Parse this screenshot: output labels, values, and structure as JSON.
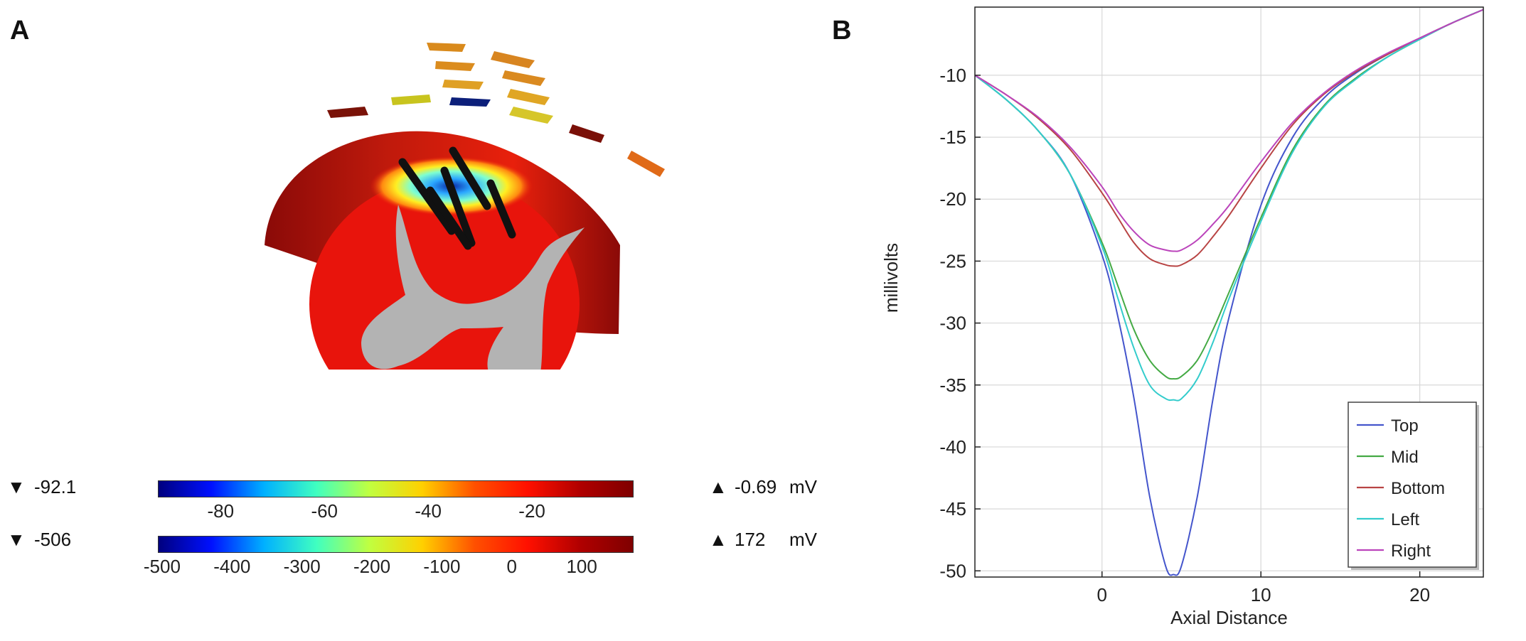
{
  "panel_a": {
    "label": "A",
    "colorbars": [
      {
        "min_label": "-92.1",
        "max_label": "-0.69",
        "unit": "mV",
        "ticks": [
          "-80",
          "-60",
          "-40",
          "-20"
        ],
        "tick_values": [
          -80,
          -60,
          -40,
          -20
        ],
        "range": [
          -92.1,
          -0.69
        ]
      },
      {
        "min_label": "-506",
        "max_label": "172",
        "unit": "mV",
        "ticks": [
          "-500",
          "-400",
          "-300",
          "-200",
          "-100",
          "0",
          "100"
        ],
        "tick_values": [
          -500,
          -400,
          -300,
          -200,
          -100,
          0,
          100
        ],
        "range": [
          -506,
          172
        ]
      }
    ],
    "colors": {
      "cord_red": "#e8140c",
      "dark_red": "#8a0a08",
      "gray_matter": "#b3b3b3",
      "lead": "#111111"
    }
  },
  "panel_b": {
    "label": "B"
  },
  "chart_data": {
    "type": "line",
    "title": "",
    "xlabel": "Axial Distance",
    "ylabel": "millivolts",
    "xlim": [
      -8,
      24
    ],
    "ylim": [
      -50.5,
      -4.5
    ],
    "xticks": [
      0,
      10,
      20
    ],
    "xtick_labels": [
      "0",
      "10",
      "20"
    ],
    "yticks": [
      -10,
      -15,
      -20,
      -25,
      -30,
      -35,
      -40,
      -45,
      -50
    ],
    "ytick_labels": [
      "-10",
      "-15",
      "-20",
      "-25",
      "-30",
      "-35",
      "-40",
      "-45",
      "-50"
    ],
    "grid": true,
    "legend_position": "bottom-right",
    "x": [
      -8,
      -6,
      -4,
      -2,
      0,
      1,
      2,
      3,
      4,
      4.5,
      5,
      6,
      7,
      8,
      10,
      12,
      14,
      16,
      18,
      20,
      22,
      24
    ],
    "series": [
      {
        "name": "Top",
        "color": "#4455cc",
        "values": [
          -10,
          -12,
          -14.5,
          -18,
          -24.5,
          -29.5,
          -36,
          -44,
          -49.6,
          -50.3,
          -49.6,
          -44,
          -36,
          -29.5,
          -20.5,
          -15,
          -11.8,
          -9.8,
          -8.3,
          -7,
          -5.8,
          -4.7
        ]
      },
      {
        "name": "Mid",
        "color": "#44aa44",
        "values": [
          -10,
          -12,
          -14.5,
          -18,
          -23.5,
          -27,
          -30.5,
          -33,
          -34.3,
          -34.5,
          -34.3,
          -33,
          -30.5,
          -27.5,
          -21.5,
          -16,
          -12.4,
          -10.2,
          -8.5,
          -7.1,
          -5.8,
          -4.7
        ]
      },
      {
        "name": "Bottom",
        "color": "#b84444",
        "values": [
          -10,
          -11.6,
          -13.5,
          -16,
          -19.5,
          -21.5,
          -23.5,
          -24.8,
          -25.3,
          -25.4,
          -25.3,
          -24.5,
          -23,
          -21.3,
          -17.5,
          -14,
          -11.5,
          -9.7,
          -8.3,
          -7,
          -5.8,
          -4.7
        ]
      },
      {
        "name": "Left",
        "color": "#33cccc",
        "values": [
          -10,
          -12,
          -14.5,
          -18,
          -23.8,
          -28,
          -32,
          -35,
          -36.1,
          -36.2,
          -36.1,
          -34.5,
          -31.5,
          -28,
          -21.8,
          -16.2,
          -12.5,
          -10.3,
          -8.5,
          -7.1,
          -5.8,
          -4.7
        ]
      },
      {
        "name": "Right",
        "color": "#bb44bb",
        "values": [
          -10,
          -11.6,
          -13.4,
          -15.8,
          -19,
          -21,
          -22.6,
          -23.7,
          -24.1,
          -24.2,
          -24.1,
          -23.3,
          -22,
          -20.5,
          -17,
          -13.8,
          -11.4,
          -9.6,
          -8.2,
          -7,
          -5.8,
          -4.7
        ]
      }
    ]
  }
}
